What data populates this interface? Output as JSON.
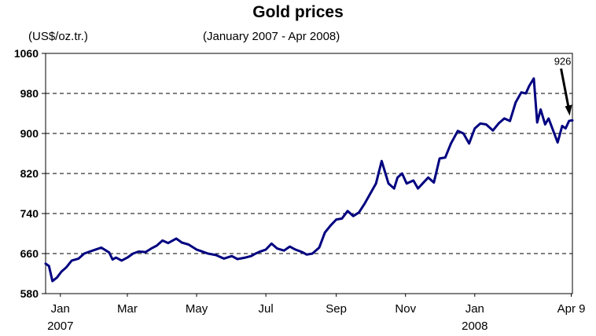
{
  "chart_data": {
    "type": "line",
    "title": "Gold prices",
    "subtitle": "(January 2007 - Apr 2008)",
    "ylabel": "(US$/oz.tr.)",
    "ylim": [
      580,
      1060
    ],
    "yticks": [
      580,
      660,
      740,
      820,
      900,
      980,
      1060
    ],
    "xlim": [
      "2007-01-02",
      "2008-04-10"
    ],
    "xticks": [
      {
        "date": "2007-01-15",
        "label": "Jan",
        "year": "2007"
      },
      {
        "date": "2007-03-15",
        "label": "Mar",
        "year": ""
      },
      {
        "date": "2007-05-15",
        "label": "May",
        "year": ""
      },
      {
        "date": "2007-07-15",
        "label": "Jul",
        "year": ""
      },
      {
        "date": "2007-09-15",
        "label": "Sep",
        "year": ""
      },
      {
        "date": "2007-11-15",
        "label": "Nov",
        "year": ""
      },
      {
        "date": "2008-01-15",
        "label": "Jan",
        "year": "2008"
      },
      {
        "date": "2008-04-09",
        "label": "Apr 9",
        "year": ""
      }
    ],
    "grid": "horizontal-dashed",
    "line_color": "#000080",
    "annotation": {
      "date": "2008-04-09",
      "value": 926,
      "label": "926"
    },
    "series": [
      {
        "name": "",
        "x": [
          "2007-01-02",
          "2007-01-05",
          "2007-01-08",
          "2007-01-12",
          "2007-01-16",
          "2007-01-20",
          "2007-01-25",
          "2007-01-31",
          "2007-02-05",
          "2007-02-10",
          "2007-02-15",
          "2007-02-20",
          "2007-02-27",
          "2007-03-02",
          "2007-03-05",
          "2007-03-10",
          "2007-03-15",
          "2007-03-20",
          "2007-03-25",
          "2007-03-31",
          "2007-04-05",
          "2007-04-10",
          "2007-04-15",
          "2007-04-20",
          "2007-04-27",
          "2007-05-02",
          "2007-05-08",
          "2007-05-15",
          "2007-05-20",
          "2007-05-25",
          "2007-06-01",
          "2007-06-08",
          "2007-06-15",
          "2007-06-20",
          "2007-06-27",
          "2007-07-02",
          "2007-07-06",
          "2007-07-10",
          "2007-07-15",
          "2007-07-20",
          "2007-07-25",
          "2007-07-31",
          "2007-08-05",
          "2007-08-10",
          "2007-08-16",
          "2007-08-20",
          "2007-08-25",
          "2007-08-31",
          "2007-09-05",
          "2007-09-10",
          "2007-09-15",
          "2007-09-20",
          "2007-09-25",
          "2007-09-30",
          "2007-10-05",
          "2007-10-10",
          "2007-10-15",
          "2007-10-20",
          "2007-10-25",
          "2007-10-31",
          "2007-11-05",
          "2007-11-08",
          "2007-11-12",
          "2007-11-16",
          "2007-11-22",
          "2007-11-26",
          "2007-11-30",
          "2007-12-05",
          "2007-12-10",
          "2007-12-15",
          "2007-12-20",
          "2007-12-25",
          "2007-12-31",
          "2008-01-05",
          "2008-01-10",
          "2008-01-15",
          "2008-01-20",
          "2008-01-25",
          "2008-01-31",
          "2008-02-05",
          "2008-02-10",
          "2008-02-15",
          "2008-02-20",
          "2008-02-25",
          "2008-02-29",
          "2008-03-03",
          "2008-03-07",
          "2008-03-10",
          "2008-03-13",
          "2008-03-17",
          "2008-03-20",
          "2008-03-25",
          "2008-03-28",
          "2008-04-01",
          "2008-04-04",
          "2008-04-07",
          "2008-04-09",
          "2008-04-10"
        ],
        "values": [
          640,
          635,
          605,
          612,
          624,
          632,
          646,
          650,
          660,
          664,
          668,
          672,
          662,
          648,
          652,
          646,
          652,
          660,
          664,
          663,
          670,
          676,
          686,
          681,
          690,
          682,
          678,
          668,
          664,
          660,
          657,
          650,
          655,
          649,
          652,
          655,
          660,
          664,
          668,
          680,
          670,
          666,
          674,
          668,
          663,
          658,
          660,
          672,
          702,
          716,
          728,
          730,
          745,
          735,
          742,
          760,
          780,
          800,
          845,
          800,
          790,
          812,
          820,
          800,
          806,
          790,
          800,
          812,
          802,
          850,
          852,
          880,
          905,
          900,
          880,
          910,
          920,
          918,
          906,
          920,
          930,
          925,
          962,
          982,
          980,
          995,
          1010,
          922,
          948,
          918,
          930,
          900,
          882,
          915,
          910,
          925,
          926,
          926
        ]
      }
    ]
  }
}
